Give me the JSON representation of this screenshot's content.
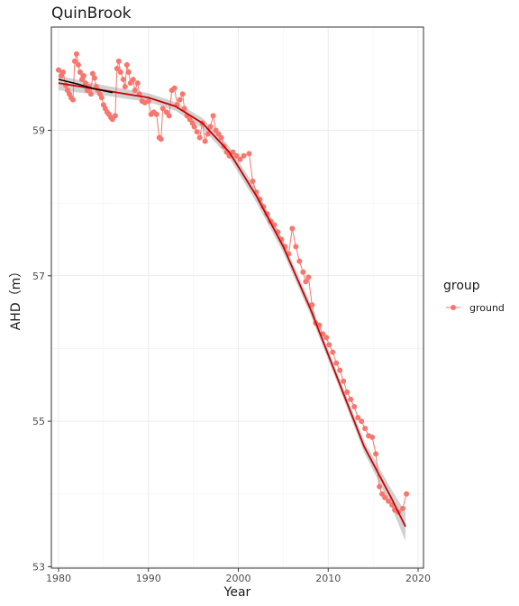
{
  "chart_data": {
    "type": "scatter",
    "title": "QuinBrook",
    "xlabel": "Year",
    "ylabel": "AHD（m）",
    "xlim": [
      1979.2,
      2020.6
    ],
    "ylim": [
      52.98,
      60.42
    ],
    "x_ticks": [
      1980,
      1990,
      2000,
      2010,
      2020
    ],
    "x_tick_labels": [
      "1980",
      "1990",
      "2000",
      "2010",
      "2020"
    ],
    "y_ticks": [
      53,
      55,
      57,
      59
    ],
    "y_tick_labels": [
      "53",
      "55",
      "57",
      "59"
    ],
    "grid": true,
    "legend": {
      "title": "group",
      "position": "right",
      "entries": [
        "ground"
      ]
    },
    "colors": {
      "points": "#F8766D",
      "trend": "#CC0000",
      "early_trend": "#000000",
      "ribbon": "#999999"
    },
    "series": [
      {
        "name": "ground",
        "points": [
          [
            1980.0,
            59.83
          ],
          [
            1980.3,
            59.75
          ],
          [
            1980.5,
            59.8
          ],
          [
            1980.8,
            59.62
          ],
          [
            1981.0,
            59.55
          ],
          [
            1981.2,
            59.5
          ],
          [
            1981.4,
            59.45
          ],
          [
            1981.6,
            59.42
          ],
          [
            1981.8,
            59.95
          ],
          [
            1982.0,
            60.05
          ],
          [
            1982.2,
            59.9
          ],
          [
            1982.4,
            59.8
          ],
          [
            1982.6,
            59.7
          ],
          [
            1982.8,
            59.75
          ],
          [
            1983.0,
            59.65
          ],
          [
            1983.2,
            59.55
          ],
          [
            1983.4,
            59.6
          ],
          [
            1983.6,
            59.5
          ],
          [
            1983.8,
            59.78
          ],
          [
            1984.0,
            59.72
          ],
          [
            1984.2,
            59.6
          ],
          [
            1984.4,
            59.55
          ],
          [
            1984.6,
            59.5
          ],
          [
            1984.8,
            59.45
          ],
          [
            1985.0,
            59.35
          ],
          [
            1985.2,
            59.3
          ],
          [
            1985.4,
            59.25
          ],
          [
            1985.6,
            59.22
          ],
          [
            1985.8,
            59.18
          ],
          [
            1986.0,
            59.15
          ],
          [
            1986.3,
            59.2
          ],
          [
            1986.5,
            59.85
          ],
          [
            1986.7,
            59.95
          ],
          [
            1986.9,
            59.8
          ],
          [
            1987.2,
            59.7
          ],
          [
            1987.4,
            59.6
          ],
          [
            1987.6,
            59.9
          ],
          [
            1987.8,
            59.8
          ],
          [
            1988.0,
            59.65
          ],
          [
            1988.3,
            59.7
          ],
          [
            1988.5,
            59.55
          ],
          [
            1988.8,
            59.65
          ],
          [
            1989.0,
            59.5
          ],
          [
            1989.3,
            59.4
          ],
          [
            1989.6,
            59.38
          ],
          [
            1990.0,
            59.4
          ],
          [
            1990.3,
            59.22
          ],
          [
            1990.6,
            59.25
          ],
          [
            1990.9,
            59.22
          ],
          [
            1991.2,
            58.9
          ],
          [
            1991.4,
            58.88
          ],
          [
            1991.6,
            59.3
          ],
          [
            1992.0,
            59.25
          ],
          [
            1992.3,
            59.2
          ],
          [
            1992.6,
            59.55
          ],
          [
            1992.9,
            59.58
          ],
          [
            1993.2,
            59.35
          ],
          [
            1993.5,
            59.42
          ],
          [
            1993.8,
            59.5
          ],
          [
            1994.0,
            59.3
          ],
          [
            1994.3,
            59.2
          ],
          [
            1994.6,
            59.15
          ],
          [
            1994.9,
            59.1
          ],
          [
            1995.1,
            59.05
          ],
          [
            1995.4,
            58.98
          ],
          [
            1995.7,
            58.9
          ],
          [
            1996.0,
            59.1
          ],
          [
            1996.3,
            58.85
          ],
          [
            1996.6,
            58.95
          ],
          [
            1996.9,
            59.05
          ],
          [
            1997.2,
            59.2
          ],
          [
            1997.5,
            59.0
          ],
          [
            1997.8,
            58.95
          ],
          [
            1998.1,
            58.9
          ],
          [
            1998.4,
            58.78
          ],
          [
            1998.7,
            58.7
          ],
          [
            1999.0,
            58.65
          ],
          [
            1999.4,
            58.7
          ],
          [
            1999.8,
            58.65
          ],
          [
            2000.2,
            58.6
          ],
          [
            2000.6,
            58.65
          ],
          [
            2001.2,
            58.68
          ],
          [
            2001.6,
            58.3
          ],
          [
            2002.0,
            58.15
          ],
          [
            2002.4,
            58.05
          ],
          [
            2002.8,
            57.95
          ],
          [
            2003.2,
            57.85
          ],
          [
            2003.6,
            57.75
          ],
          [
            2004.0,
            57.7
          ],
          [
            2004.4,
            57.6
          ],
          [
            2004.8,
            57.5
          ],
          [
            2005.2,
            57.4
          ],
          [
            2005.6,
            57.3
          ],
          [
            2006.0,
            57.65
          ],
          [
            2006.4,
            57.4
          ],
          [
            2006.8,
            57.2
          ],
          [
            2007.2,
            57.05
          ],
          [
            2007.5,
            56.92
          ],
          [
            2007.8,
            56.98
          ],
          [
            2008.2,
            56.6
          ],
          [
            2008.6,
            56.35
          ],
          [
            2009.0,
            56.32
          ],
          [
            2009.4,
            56.2
          ],
          [
            2009.8,
            56.15
          ],
          [
            2010.1,
            56.05
          ],
          [
            2010.5,
            55.95
          ],
          [
            2010.9,
            55.8
          ],
          [
            2011.3,
            55.7
          ],
          [
            2011.7,
            55.55
          ],
          [
            2012.1,
            55.4
          ],
          [
            2012.5,
            55.3
          ],
          [
            2012.9,
            55.2
          ],
          [
            2013.3,
            55.05
          ],
          [
            2013.7,
            55.0
          ],
          [
            2014.1,
            54.9
          ],
          [
            2014.5,
            54.8
          ],
          [
            2014.9,
            54.78
          ],
          [
            2015.3,
            54.55
          ],
          [
            2015.7,
            54.1
          ],
          [
            2016.0,
            54.0
          ],
          [
            2016.3,
            53.95
          ],
          [
            2016.7,
            53.9
          ],
          [
            2017.1,
            53.85
          ],
          [
            2017.4,
            53.78
          ],
          [
            2017.8,
            53.75
          ],
          [
            2018.3,
            53.8
          ],
          [
            2018.7,
            54.0
          ]
        ]
      }
    ],
    "trend": {
      "x": [
        1980,
        1985,
        1990,
        1993,
        1996,
        1999,
        2002,
        2005,
        2008,
        2011,
        2014,
        2017,
        2018.6
      ],
      "y": [
        59.65,
        59.55,
        59.45,
        59.33,
        59.1,
        58.7,
        58.1,
        57.4,
        56.55,
        55.6,
        54.65,
        53.95,
        53.55
      ],
      "ribbon_halfwidth": [
        0.1,
        0.07,
        0.06,
        0.06,
        0.07,
        0.08,
        0.09,
        0.08,
        0.08,
        0.07,
        0.08,
        0.12,
        0.2
      ]
    },
    "early_trend": {
      "x": [
        1980,
        1982,
        1984,
        1986
      ],
      "y": [
        59.7,
        59.64,
        59.57,
        59.52
      ]
    }
  }
}
